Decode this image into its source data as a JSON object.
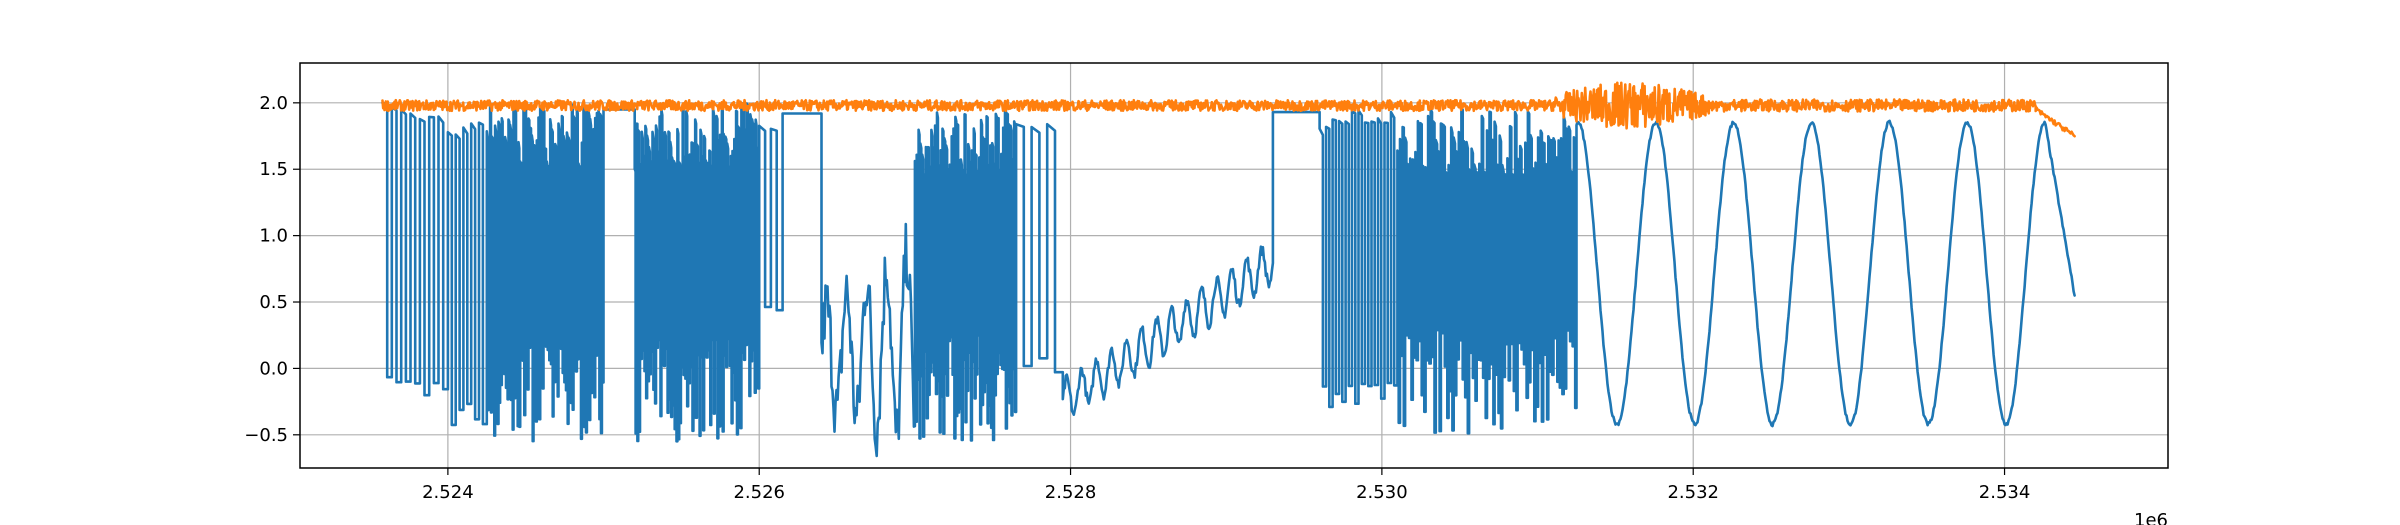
{
  "chart_data": {
    "type": "line",
    "title": "",
    "xlabel": "",
    "ylabel": "",
    "x_offset_label": "1e6",
    "xlim": [
      2.52305,
      2.53505
    ],
    "ylim": [
      -0.75,
      2.3
    ],
    "x_ticks": [
      2.524,
      2.526,
      2.528,
      2.53,
      2.532,
      2.534
    ],
    "x_tick_labels": [
      "2.524",
      "2.526",
      "2.528",
      "2.530",
      "2.532",
      "2.534"
    ],
    "y_ticks": [
      -0.5,
      0.0,
      0.5,
      1.0,
      1.5,
      2.0
    ],
    "y_tick_labels": [
      "−0.5",
      "0.0",
      "0.5",
      "1.0",
      "1.5",
      "2.0"
    ],
    "grid": true,
    "legend": "none",
    "x_range": [
      2.52358,
      2.53445
    ],
    "series": [
      {
        "color": "#1f77b4",
        "segments": [
          {
            "x0": 2.52358,
            "x1": 2.524,
            "pattern": "switching",
            "low": -0.25,
            "high": 2.0,
            "periods": 7
          },
          {
            "x0": 2.524,
            "x1": 2.52425,
            "pattern": "switching",
            "low": -0.45,
            "high": 1.9,
            "periods": 5
          },
          {
            "x0": 2.52425,
            "x1": 2.525,
            "pattern": "dense",
            "low": -0.55,
            "high": 2.0,
            "periods": 70
          },
          {
            "x0": 2.525,
            "x1": 2.5252,
            "pattern": "flat",
            "value": 1.95
          },
          {
            "x0": 2.5252,
            "x1": 2.526,
            "pattern": "dense",
            "low": -0.55,
            "high": 2.0,
            "periods": 70
          },
          {
            "x0": 2.526,
            "x1": 2.52615,
            "pattern": "switching",
            "low": 0.3,
            "high": 1.95,
            "periods": 2
          },
          {
            "x0": 2.52615,
            "x1": 2.5264,
            "pattern": "flat",
            "value": 1.92
          },
          {
            "x0": 2.5264,
            "x1": 2.527,
            "pattern": "noisy-trough",
            "low": -0.55,
            "high": 0.9,
            "periods": 14
          },
          {
            "x0": 2.527,
            "x1": 2.52765,
            "pattern": "dense",
            "low": -0.55,
            "high": 1.95,
            "periods": 55
          },
          {
            "x0": 2.52765,
            "x1": 2.52795,
            "pattern": "switching",
            "low": -0.1,
            "high": 1.9,
            "periods": 3
          },
          {
            "x0": 2.52795,
            "x1": 2.5293,
            "pattern": "ramp",
            "start": -0.25,
            "end": 0.8,
            "wobble": 0.15,
            "periods": 14
          },
          {
            "x0": 2.5293,
            "x1": 2.5296,
            "pattern": "flat",
            "value": 1.93
          },
          {
            "x0": 2.5296,
            "x1": 2.5301,
            "pattern": "switching",
            "low": -0.3,
            "high": 1.95,
            "periods": 12
          },
          {
            "x0": 2.5301,
            "x1": 2.53125,
            "pattern": "dense",
            "low": -0.5,
            "high": 1.95,
            "periods": 70
          },
          {
            "x0": 2.53125,
            "x1": 2.53445,
            "pattern": "sine",
            "low": -0.42,
            "high": 1.85,
            "peaks": [
              2.53176,
              2.53226,
              2.53276,
              2.53326,
              2.53376,
              2.53426
            ],
            "end_value": 0.55
          }
        ]
      },
      {
        "color": "#ff7f0e",
        "segments": [
          {
            "x0": 2.52358,
            "x1": 2.5311,
            "pattern": "noise",
            "center": 1.98,
            "amp": 0.04
          },
          {
            "x0": 2.5311,
            "x1": 2.5321,
            "pattern": "burst",
            "center": 1.98,
            "amp": 0.18
          },
          {
            "x0": 2.5321,
            "x1": 2.5342,
            "pattern": "noise",
            "center": 1.98,
            "amp": 0.045
          },
          {
            "x0": 2.5342,
            "x1": 2.53445,
            "pattern": "droop",
            "start": 1.95,
            "end": 1.75
          }
        ]
      }
    ]
  }
}
